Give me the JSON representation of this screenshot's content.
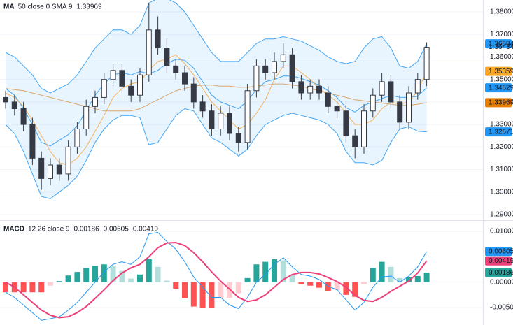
{
  "chart_data": [
    {
      "type": "candlestick",
      "legend": {
        "title": "MA",
        "text": "50 close 0 SMA 9",
        "values": [
          1.33969
        ],
        "colors": [
          "#f57c00"
        ]
      },
      "up_color": "#ffffff",
      "down_color": "#363a45",
      "wick_color": "#363a45",
      "open": [
        1.342,
        1.34,
        1.337,
        1.33,
        1.315,
        1.306,
        1.312,
        1.308,
        1.32,
        1.328,
        1.338,
        1.342,
        1.35,
        1.354,
        1.347,
        1.343,
        1.352,
        1.372,
        1.364,
        1.356,
        1.353,
        1.348,
        1.34,
        1.336,
        1.328,
        1.335,
        1.326,
        1.322,
        1.345,
        1.356,
        1.353,
        1.358,
        1.361,
        1.349,
        1.344,
        1.347,
        1.344,
        1.338,
        1.336,
        1.325,
        1.32,
        1.336,
        1.343,
        1.349,
        1.34,
        1.331,
        1.344,
        1.35
      ],
      "high": [
        1.345,
        1.343,
        1.34,
        1.333,
        1.318,
        1.315,
        1.315,
        1.323,
        1.331,
        1.341,
        1.345,
        1.353,
        1.357,
        1.357,
        1.35,
        1.355,
        1.384,
        1.378,
        1.368,
        1.359,
        1.356,
        1.351,
        1.343,
        1.339,
        1.338,
        1.338,
        1.329,
        1.348,
        1.359,
        1.359,
        1.362,
        1.366,
        1.364,
        1.352,
        1.35,
        1.35,
        1.347,
        1.341,
        1.339,
        1.328,
        1.339,
        1.346,
        1.353,
        1.352,
        1.343,
        1.347,
        1.353,
        1.3665
      ],
      "low": [
        1.337,
        1.334,
        1.327,
        1.312,
        1.301,
        1.303,
        1.305,
        1.305,
        1.317,
        1.325,
        1.335,
        1.339,
        1.347,
        1.344,
        1.34,
        1.34,
        1.349,
        1.361,
        1.353,
        1.35,
        1.345,
        1.337,
        1.333,
        1.325,
        1.325,
        1.323,
        1.318,
        1.319,
        1.342,
        1.35,
        1.35,
        1.355,
        1.346,
        1.341,
        1.341,
        1.341,
        1.335,
        1.333,
        1.322,
        1.315,
        1.317,
        1.333,
        1.34,
        1.337,
        1.328,
        1.328,
        1.341,
        1.347
      ],
      "close": [
        1.34,
        1.337,
        1.33,
        1.315,
        1.306,
        1.312,
        1.308,
        1.32,
        1.328,
        1.338,
        1.342,
        1.35,
        1.354,
        1.347,
        1.343,
        1.352,
        1.372,
        1.364,
        1.356,
        1.353,
        1.348,
        1.34,
        1.336,
        1.328,
        1.335,
        1.326,
        1.322,
        1.345,
        1.356,
        1.353,
        1.358,
        1.361,
        1.349,
        1.344,
        1.347,
        1.344,
        1.338,
        1.336,
        1.325,
        1.32,
        1.336,
        1.343,
        1.349,
        1.34,
        1.331,
        1.344,
        1.35,
        1.3643
      ],
      "band": {
        "fill": "rgba(33,150,243,0.10)",
        "upper": {
          "color": "#42a5f5",
          "values": [
            1.362,
            1.36,
            1.356,
            1.352,
            1.346,
            1.344,
            1.346,
            1.348,
            1.352,
            1.358,
            1.364,
            1.368,
            1.372,
            1.372,
            1.37,
            1.374,
            1.384,
            1.386,
            1.386,
            1.384,
            1.38,
            1.374,
            1.368,
            1.362,
            1.358,
            1.358,
            1.358,
            1.362,
            1.366,
            1.368,
            1.368,
            1.369,
            1.368,
            1.367,
            1.365,
            1.363,
            1.36,
            1.358,
            1.357,
            1.358,
            1.364,
            1.368,
            1.369,
            1.364,
            1.356,
            1.355,
            1.358,
            1.36584
          ]
        },
        "lower": {
          "color": "#42a5f5",
          "values": [
            1.33,
            1.326,
            1.318,
            1.308,
            1.298,
            1.297,
            1.3,
            1.303,
            1.307,
            1.314,
            1.322,
            1.328,
            1.332,
            1.334,
            1.334,
            1.333,
            1.321,
            1.322,
            1.328,
            1.334,
            1.337,
            1.336,
            1.33,
            1.324,
            1.322,
            1.319,
            1.316,
            1.319,
            1.325,
            1.33,
            1.332,
            1.334,
            1.335,
            1.334,
            1.333,
            1.332,
            1.33,
            1.326,
            1.318,
            1.313,
            1.313,
            1.312,
            1.314,
            1.322,
            1.328,
            1.329,
            1.327,
            1.32671
          ]
        }
      },
      "lines": [
        {
          "color": "#42a5f5",
          "values": [
            1.346,
            1.343,
            1.337,
            1.33,
            1.322,
            1.3205,
            1.323,
            1.3255,
            1.3295,
            1.336,
            1.343,
            1.348,
            1.352,
            1.353,
            1.352,
            1.3535,
            1.3525,
            1.354,
            1.357,
            1.359,
            1.3585,
            1.355,
            1.349,
            1.343,
            1.34,
            1.3385,
            1.337,
            1.3405,
            1.3455,
            1.349,
            1.35,
            1.3515,
            1.3515,
            1.3505,
            1.349,
            1.3475,
            1.345,
            1.342,
            1.3375,
            1.3355,
            1.3385,
            1.34,
            1.3415,
            1.343,
            1.342,
            1.342,
            1.3425,
            1.34629
          ]
        },
        {
          "color": "#f7b25c",
          "values": [
            1.344,
            1.342,
            1.338,
            1.332,
            1.325,
            1.318,
            1.313,
            1.312,
            1.315,
            1.32,
            1.327,
            1.334,
            1.342,
            1.346,
            1.348,
            1.349,
            1.354,
            1.358,
            1.359,
            1.361,
            1.357,
            1.352,
            1.346,
            1.34,
            1.336,
            1.332,
            1.328,
            1.33,
            1.335,
            1.341,
            1.35,
            1.356,
            1.356,
            1.353,
            1.35,
            1.346,
            1.343,
            1.34,
            1.335,
            1.33,
            1.33,
            1.332,
            1.337,
            1.34,
            1.339,
            1.34,
            1.345,
            1.35359
          ]
        },
        {
          "color": "#d9a66e",
          "values": [
            1.346,
            1.3455,
            1.345,
            1.344,
            1.343,
            1.342,
            1.341,
            1.34,
            1.339,
            1.338,
            1.337,
            1.336,
            1.336,
            1.336,
            1.336,
            1.337,
            1.339,
            1.341,
            1.343,
            1.345,
            1.346,
            1.347,
            1.3475,
            1.3475,
            1.347,
            1.347,
            1.3465,
            1.3465,
            1.347,
            1.3475,
            1.348,
            1.348,
            1.3475,
            1.347,
            1.346,
            1.345,
            1.344,
            1.343,
            1.342,
            1.341,
            1.3405,
            1.34,
            1.3395,
            1.339,
            1.3385,
            1.3385,
            1.339,
            1.33969
          ]
        }
      ],
      "ylim": [
        1.2881,
        1.3853
      ],
      "yticks": [
        {
          "value": 1.29,
          "label": "1.29000"
        },
        {
          "value": 1.3,
          "label": "1.30000"
        },
        {
          "value": 1.31,
          "label": "1.31000"
        },
        {
          "value": 1.32,
          "label": "1.32000"
        },
        {
          "value": 1.33,
          "label": "1.33000"
        },
        {
          "value": 1.34,
          "label": "1.34000"
        },
        {
          "value": 1.35,
          "label": "1.35000"
        },
        {
          "value": 1.36,
          "label": "1.36000"
        },
        {
          "value": 1.37,
          "label": "1.37000"
        },
        {
          "value": 1.38,
          "label": "1.38000"
        }
      ],
      "grid": true,
      "price_labels": [
        {
          "value": 1.36584,
          "color": "#2196f3"
        },
        {
          "value": 1.36434
        },
        {
          "value": 1.35359,
          "color": "#f9a825"
        },
        {
          "value": 1.34629,
          "color": "#2196f3"
        },
        {
          "value": 1.33969,
          "color": "#e67e00"
        },
        {
          "value": 1.32671,
          "color": "#2196f3"
        }
      ]
    },
    {
      "type": "macd",
      "legend": {
        "title": "MACD",
        "text": "12 26 close 9",
        "values": [
          0.00186,
          0.00605,
          0.00419
        ],
        "colors": [
          "#26a69a",
          "#2196f3",
          "#ec407a"
        ]
      },
      "histogram": {
        "colors": [
          "#26a69a",
          "#b2dfdb",
          "#ff5252",
          "#ffcdd2"
        ],
        "values": [
          -0.002,
          -0.002,
          -0.002,
          -0.002,
          -0.002,
          -0.0007,
          0.0002,
          0.0013,
          0.002,
          0.0028,
          0.0032,
          0.0035,
          0.0032,
          0.0022,
          0.0007,
          0.0015,
          0.0045,
          0.003,
          0.0003,
          -0.0013,
          -0.0032,
          -0.0048,
          -0.005,
          -0.005,
          -0.0032,
          -0.0031,
          -0.0022,
          0.0008,
          0.0035,
          0.004,
          0.0045,
          0.0043,
          0.0015,
          -0.0004,
          -0.0007,
          -0.0011,
          -0.0017,
          -0.0016,
          -0.0025,
          -0.0029,
          -0.0004,
          0.0028,
          0.004,
          0.003,
          0.0008,
          0.001,
          0.0012,
          0.00186
        ]
      },
      "lines": [
        {
          "color": "#2196f3",
          "width": 1,
          "values": [
            -0.002,
            -0.003,
            -0.0045,
            -0.006,
            -0.0075,
            -0.0072,
            -0.0068,
            -0.0055,
            -0.004,
            -0.002,
            0.0,
            0.002,
            0.0035,
            0.004,
            0.0035,
            0.005,
            0.0095,
            0.0098,
            0.008,
            0.0065,
            0.004,
            0.001,
            -0.001,
            -0.003,
            -0.003,
            -0.0045,
            -0.0052,
            -0.003,
            0.0,
            0.0015,
            0.0035,
            0.0048,
            0.003,
            0.0015,
            0.0012,
            0.0005,
            -0.0008,
            -0.0015,
            -0.0035,
            -0.0055,
            -0.004,
            -0.001,
            0.001,
            0.0012,
            0.0,
            0.0012,
            0.003,
            0.00605
          ]
        },
        {
          "color": "#ec407a",
          "width": 2,
          "values": [
            0.0,
            -0.001,
            -0.0025,
            -0.004,
            -0.0055,
            -0.0065,
            -0.007,
            -0.0068,
            -0.006,
            -0.0048,
            -0.0032,
            -0.0015,
            0.0003,
            0.0018,
            0.0028,
            0.0035,
            0.005,
            0.0068,
            0.0077,
            0.0078,
            0.0072,
            0.0058,
            0.004,
            0.002,
            0.0002,
            -0.0014,
            -0.003,
            -0.0038,
            -0.0035,
            -0.0025,
            -0.001,
            0.0005,
            0.0015,
            0.0019,
            0.0019,
            0.0016,
            0.0009,
            0.0001,
            -0.001,
            -0.0026,
            -0.0036,
            -0.0038,
            -0.003,
            -0.0018,
            -0.0008,
            0.0002,
            0.0018,
            0.00419
          ]
        }
      ],
      "ylim": [
        -0.00844,
        0.01179
      ],
      "yticks": [
        {
          "value": -0.005,
          "label": "-0.00500"
        },
        {
          "value": 0,
          "label": "0.00000"
        },
        {
          "value": 0.01,
          "label": "0.01000"
        }
      ],
      "grid": true,
      "price_labels": [
        {
          "value": 0.00605,
          "color": "#2196f3"
        },
        {
          "value": 0.00419,
          "color": "#ec407a"
        },
        {
          "value": 0.00186,
          "color": "#26a69a"
        }
      ]
    }
  ]
}
